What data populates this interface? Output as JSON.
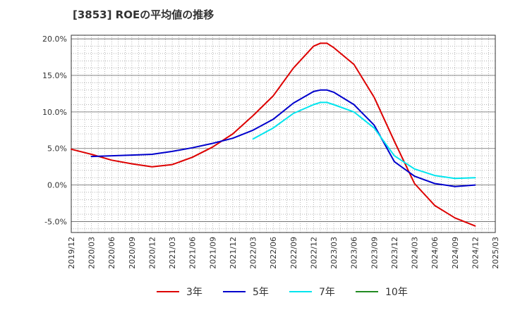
{
  "chart_data": {
    "type": "line",
    "title": "[3853]  ROEの平均値の推移",
    "xlabel": "",
    "ylabel": "",
    "x_ticks": [
      "2019/12",
      "2020/03",
      "2020/06",
      "2020/09",
      "2020/12",
      "2021/03",
      "2021/06",
      "2021/09",
      "2021/12",
      "2022/03",
      "2022/06",
      "2022/09",
      "2022/12",
      "2023/03",
      "2023/06",
      "2023/09",
      "2023/12",
      "2024/03",
      "2024/06",
      "2024/09",
      "2024/12",
      "2025/03"
    ],
    "y_ticks": [
      20,
      15,
      10,
      5,
      0,
      -5
    ],
    "y_tick_labels": [
      "20.0%",
      "15.0%",
      "10.0%",
      "5.0%",
      "0.0%",
      "-5.0%"
    ],
    "ylim": [
      -6.5,
      20.5
    ],
    "x_range": [
      "2019/12",
      "2025/03"
    ],
    "grid": true,
    "legend_position": "bottom",
    "series": [
      {
        "name": "3年",
        "color": "#dd0000",
        "points": [
          [
            "2019/12",
            4.9
          ],
          [
            "2020/03",
            4.2
          ],
          [
            "2020/06",
            3.4
          ],
          [
            "2020/09",
            2.9
          ],
          [
            "2020/12",
            2.5
          ],
          [
            "2021/03",
            2.8
          ],
          [
            "2021/06",
            3.8
          ],
          [
            "2021/09",
            5.2
          ],
          [
            "2021/12",
            7.0
          ],
          [
            "2022/03",
            9.5
          ],
          [
            "2022/06",
            12.2
          ],
          [
            "2022/09",
            16.0
          ],
          [
            "2022/12",
            19.0
          ],
          [
            "2023/01",
            19.4
          ],
          [
            "2023/02",
            19.4
          ],
          [
            "2023/03",
            18.8
          ],
          [
            "2023/06",
            16.5
          ],
          [
            "2023/09",
            12.0
          ],
          [
            "2023/12",
            6.0
          ],
          [
            "2024/03",
            0.2
          ],
          [
            "2024/06",
            -2.8
          ],
          [
            "2024/09",
            -4.5
          ],
          [
            "2024/12",
            -5.6
          ]
        ]
      },
      {
        "name": "5年",
        "color": "#0000cc",
        "points": [
          [
            "2020/03",
            3.9
          ],
          [
            "2020/06",
            4.0
          ],
          [
            "2020/09",
            4.1
          ],
          [
            "2020/12",
            4.2
          ],
          [
            "2021/03",
            4.6
          ],
          [
            "2021/06",
            5.1
          ],
          [
            "2021/09",
            5.7
          ],
          [
            "2021/12",
            6.4
          ],
          [
            "2022/03",
            7.5
          ],
          [
            "2022/06",
            9.0
          ],
          [
            "2022/09",
            11.2
          ],
          [
            "2022/12",
            12.8
          ],
          [
            "2023/01",
            13.0
          ],
          [
            "2023/02",
            13.0
          ],
          [
            "2023/03",
            12.7
          ],
          [
            "2023/06",
            11.0
          ],
          [
            "2023/09",
            8.2
          ],
          [
            "2023/12",
            3.2
          ],
          [
            "2024/03",
            1.2
          ],
          [
            "2024/06",
            0.2
          ],
          [
            "2024/09",
            -0.2
          ],
          [
            "2024/12",
            0.0
          ]
        ]
      },
      {
        "name": "7年",
        "color": "#00e5ee",
        "points": [
          [
            "2022/03",
            6.3
          ],
          [
            "2022/06",
            7.8
          ],
          [
            "2022/09",
            9.8
          ],
          [
            "2022/12",
            11.0
          ],
          [
            "2023/01",
            11.3
          ],
          [
            "2023/02",
            11.3
          ],
          [
            "2023/03",
            11.0
          ],
          [
            "2023/06",
            10.0
          ],
          [
            "2023/09",
            7.8
          ],
          [
            "2023/12",
            4.0
          ],
          [
            "2024/03",
            2.2
          ],
          [
            "2024/06",
            1.3
          ],
          [
            "2024/09",
            0.9
          ],
          [
            "2024/12",
            1.0
          ]
        ]
      },
      {
        "name": "10年",
        "color": "#228b22",
        "points": []
      }
    ]
  }
}
